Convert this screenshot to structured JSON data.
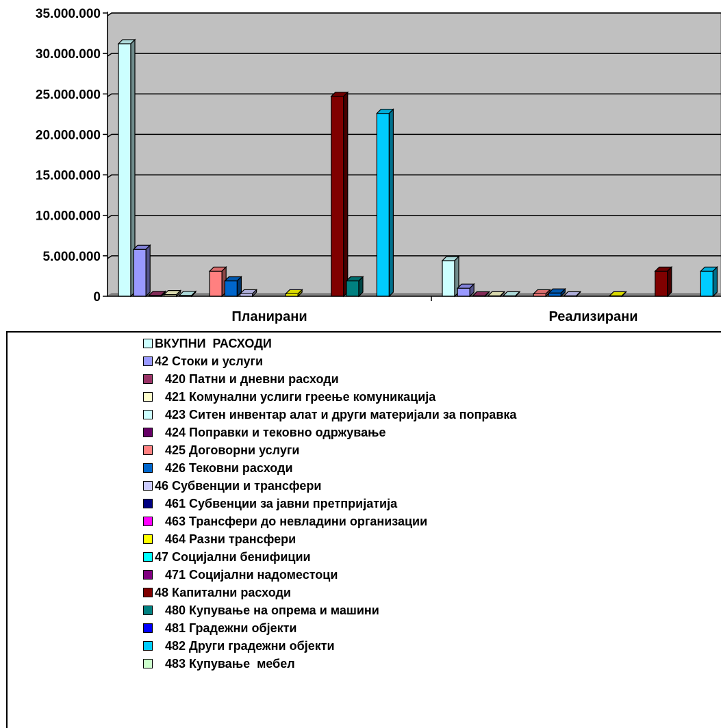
{
  "chart_data": {
    "type": "bar",
    "categories": [
      "Планирани",
      "Реализирани"
    ],
    "ylim": [
      0,
      35000000
    ],
    "yticks": [
      "0",
      "5.000.000",
      "10.000.000",
      "15.000.000",
      "20.000.000",
      "25.000.000",
      "30.000.000",
      "35.000.000"
    ],
    "grid": true,
    "legend_position": "bottom",
    "series": [
      {
        "name": "ВКУПНИ  РАСХОДИ",
        "label": "ВКУПНИ  РАСХОДИ",
        "color": "#ccffff",
        "values": [
          31200000,
          4400000
        ]
      },
      {
        "name": "42 Стоки и услуги",
        "label": "42 Стоки и услуги",
        "color": "#9999ff",
        "values": [
          5800000,
          1000000
        ]
      },
      {
        "name": "420 Патни и дневни расходи",
        "label": "   420 Патни и дневни расходи",
        "color": "#993366",
        "values": [
          100000,
          50000
        ]
      },
      {
        "name": "421 Комунални услиги греење комуникација",
        "label": "   421 Комунални услиги греење комуникација",
        "color": "#ffffcc",
        "values": [
          200000,
          50000
        ]
      },
      {
        "name": "423 Ситен инвентар алат и други материјали за поправка",
        "label": "   423 Ситен инвентар алат и други материјали за поправка",
        "color": "#ccffff",
        "values": [
          100000,
          50000
        ]
      },
      {
        "name": "424 Поправки и тековно одржување",
        "label": "   424 Поправки и тековно одржување",
        "color": "#660066",
        "values": [
          0,
          0
        ]
      },
      {
        "name": "425 Договорни услуги",
        "label": "   425 Договорни услуги",
        "color": "#ff8080",
        "values": [
          3100000,
          300000
        ]
      },
      {
        "name": "426 Тековни расходи",
        "label": "   426 Тековни расходи",
        "color": "#0066cc",
        "values": [
          1900000,
          400000
        ]
      },
      {
        "name": "46 Субвенции и трансфери",
        "label": "46 Субвенции и трансфери",
        "color": "#ccccff",
        "values": [
          300000,
          50000
        ]
      },
      {
        "name": "461 Субвенции за јавни претпријатија",
        "label": "   461 Субвенции за јавни претпријатија",
        "color": "#000080",
        "values": [
          0,
          0
        ]
      },
      {
        "name": "463 Трансфери до невладини организации",
        "label": "   463 Трансфери до невладини организации",
        "color": "#ff00ff",
        "values": [
          0,
          0
        ]
      },
      {
        "name": "464 Разни трансфери",
        "label": "   464 Разни трансфери",
        "color": "#ffff00",
        "values": [
          300000,
          50000
        ]
      },
      {
        "name": "47 Социјални бенифиции",
        "label": "47 Социјални бенифиции",
        "color": "#00ffff",
        "values": [
          0,
          0
        ]
      },
      {
        "name": "471 Социјални надоместоци",
        "label": "   471 Социјални надоместоци",
        "color": "#800080",
        "values": [
          0,
          0
        ]
      },
      {
        "name": "48 Капитални расходи",
        "label": "48 Капитални расходи",
        "color": "#800000",
        "values": [
          24700000,
          3100000
        ]
      },
      {
        "name": "480 Купување на опрема и машини",
        "label": "   480 Купување на опрема и машини",
        "color": "#008080",
        "values": [
          1900000,
          0
        ]
      },
      {
        "name": "481 Градежни објекти",
        "label": "   481 Градежни објекти",
        "color": "#0000ff",
        "values": [
          0,
          0
        ]
      },
      {
        "name": "482 Други градежни објекти",
        "label": "   482 Други градежни објекти",
        "color": "#00ccff",
        "values": [
          22600000,
          3100000
        ]
      },
      {
        "name": "483 Купување  мебел",
        "label": "   483 Купување  мебел",
        "color": "#ccffcc",
        "values": [
          0,
          0
        ]
      }
    ]
  }
}
